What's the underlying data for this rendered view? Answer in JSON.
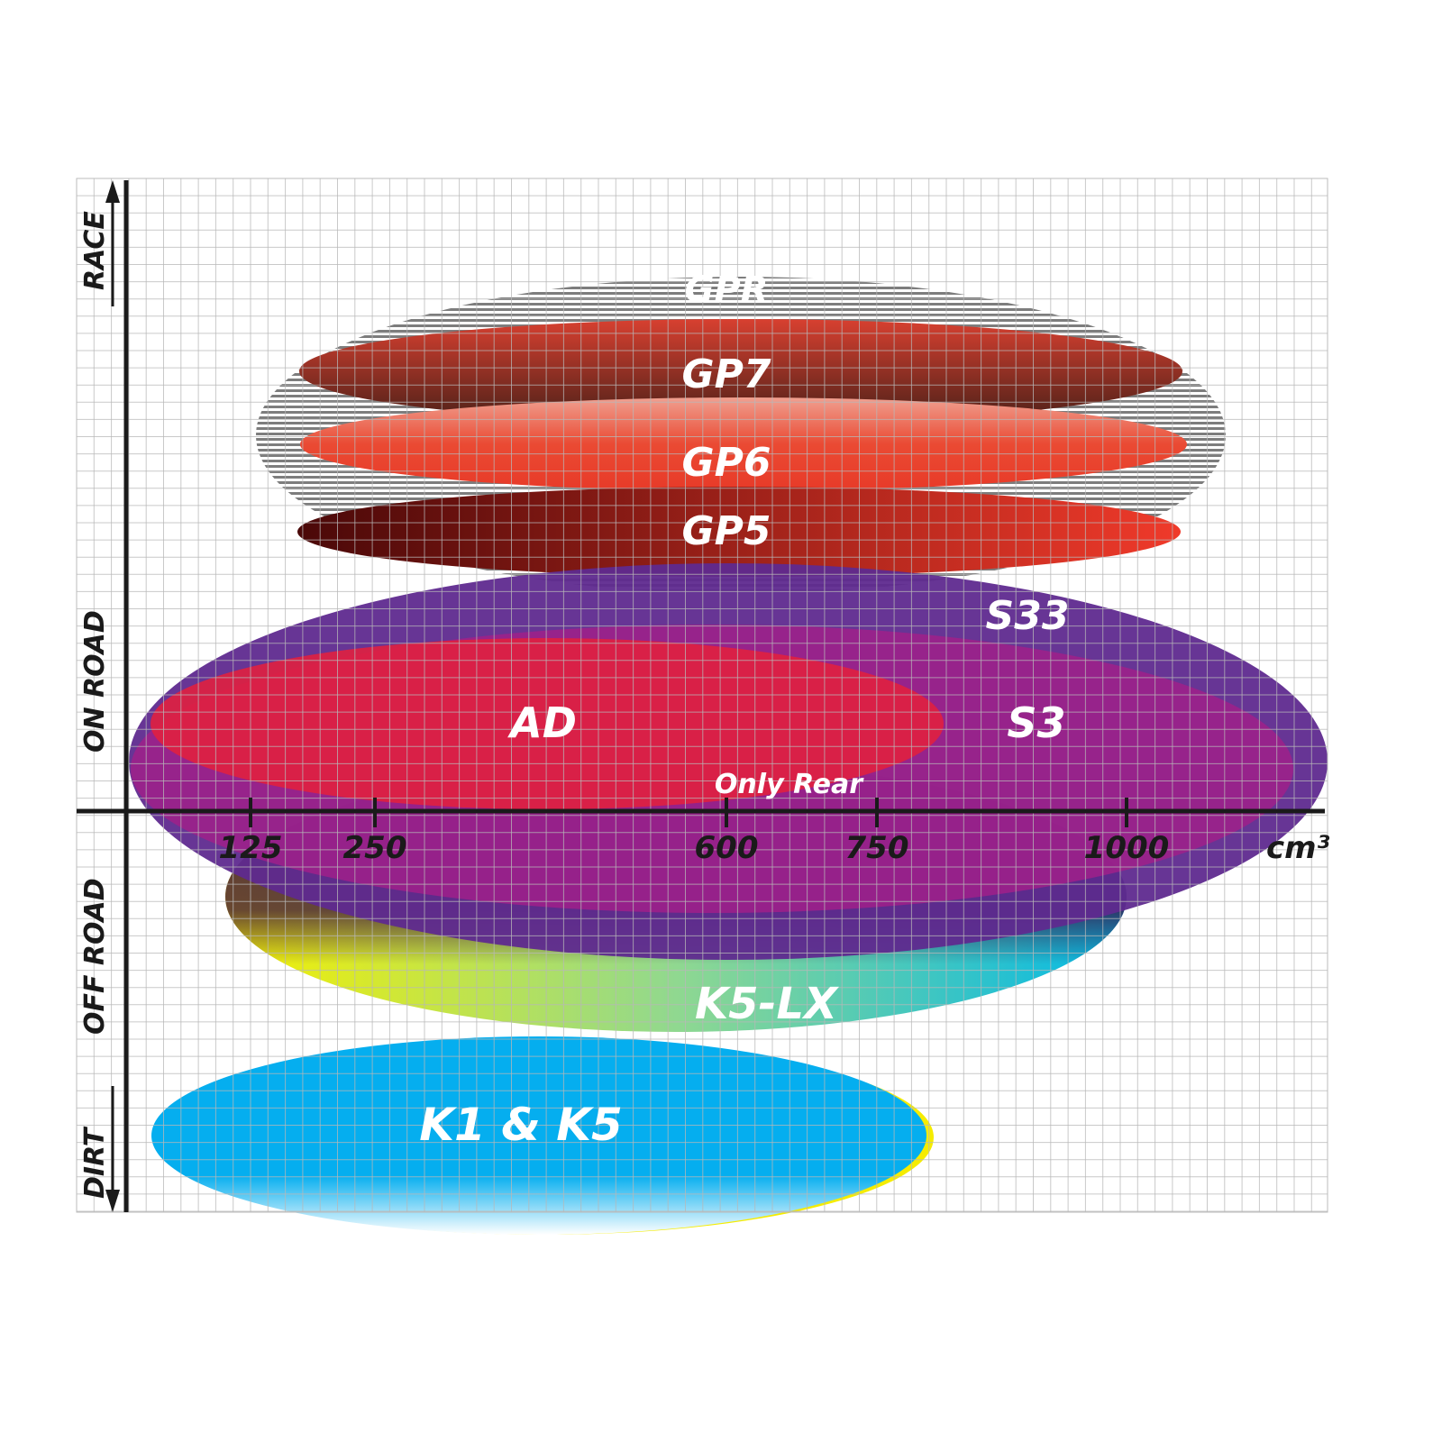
{
  "chart_data": {
    "type": "positioning-ellipses",
    "x_axis": {
      "unit": "cm³",
      "ticks": [
        "125",
        "250",
        "600",
        "750",
        "1000"
      ]
    },
    "y_axis": {
      "labels": [
        "RACE",
        "ON ROAD",
        "OFF ROAD",
        "DIRT"
      ]
    },
    "grid": true,
    "products": [
      {
        "name": "GPR",
        "color": "#8a8a8a"
      },
      {
        "name": "GP7",
        "color": "#7a2a20"
      },
      {
        "name": "GP6",
        "color": "#ea4a33"
      },
      {
        "name": "GP5",
        "color": "#a0201a"
      },
      {
        "name": "S33",
        "color": "#5f2a8f"
      },
      {
        "name": "S3",
        "color": "#a0208a"
      },
      {
        "name": "AD",
        "color": "#e0203f"
      },
      {
        "name": "K5-LX",
        "color": "#60c0a0",
        "note": "Only Rear"
      },
      {
        "name": "K1 & K5",
        "color": "#05aeef"
      }
    ]
  }
}
